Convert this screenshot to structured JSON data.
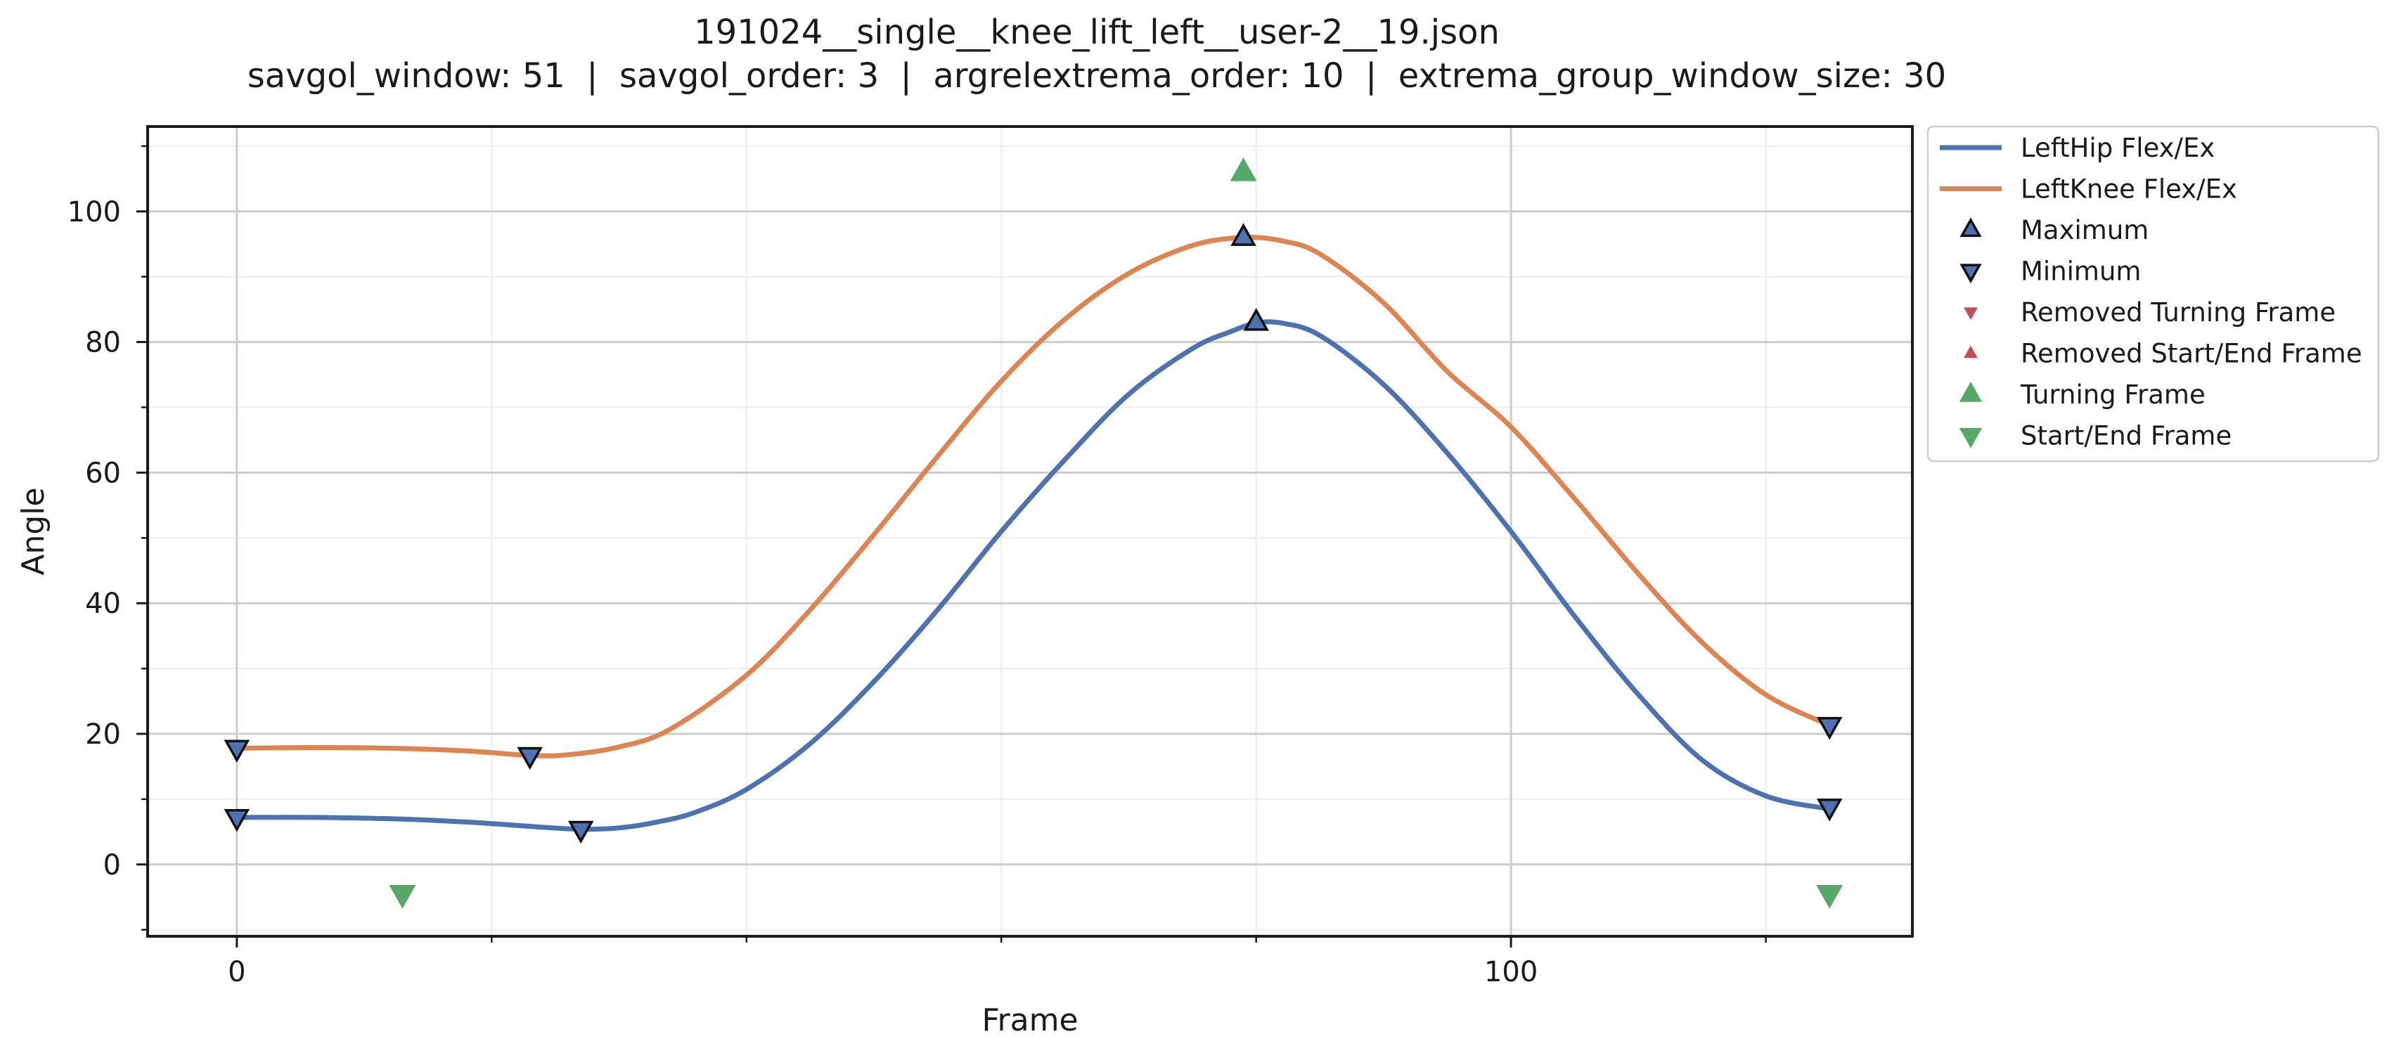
{
  "chart_data": {
    "type": "line",
    "title": "191024__single__knee_lift_left__user-2__19.json",
    "subtitle": "savgol_window: 51  |  savgol_order: 3  |  argrelextrema_order: 10  |  extrema_group_window_size: 30",
    "xlabel": "Frame",
    "ylabel": "Angle",
    "xlim": [
      -7,
      131.5
    ],
    "ylim": [
      -11,
      113
    ],
    "x_major_ticks": [
      0,
      100
    ],
    "x_minor_ticks": [
      20,
      40,
      60,
      80,
      120
    ],
    "y_major_ticks": [
      0,
      20,
      40,
      60,
      80,
      100
    ],
    "y_minor_ticks": [
      -10,
      10,
      30,
      50,
      70,
      90,
      110
    ],
    "grid": true,
    "legend_position": "outside-right-top",
    "series": [
      {
        "name": "LeftHip Flex/Ex",
        "color": "#4c72b0",
        "x": [
          0,
          6,
          12,
          18,
          24,
          27,
          30,
          33,
          36,
          40,
          45,
          50,
          55,
          60,
          65,
          70,
          75,
          78,
          80,
          82,
          85,
          90,
          95,
          100,
          105,
          110,
          115,
          120,
          125
        ],
        "y": [
          7.2,
          7.2,
          7,
          6.5,
          5.7,
          5.4,
          5.6,
          6.5,
          8,
          11.5,
          18.5,
          28,
          39,
          51,
          62,
          72,
          79,
          81.6,
          82.9,
          82.9,
          81,
          73.5,
          63,
          51,
          38,
          26,
          16,
          10.5,
          8.5
        ]
      },
      {
        "name": "LeftKnee Flex/Ex",
        "color": "#dd8452",
        "x": [
          0,
          6,
          12,
          18,
          23,
          26,
          30,
          34,
          40,
          45,
          50,
          55,
          60,
          65,
          70,
          75,
          79,
          82,
          85,
          90,
          95,
          100,
          105,
          110,
          115,
          120,
          125
        ],
        "y": [
          17.8,
          17.9,
          17.8,
          17.4,
          16.7,
          16.8,
          18,
          20.7,
          29,
          39,
          50.5,
          62.5,
          74,
          83.5,
          90.5,
          94.8,
          96,
          95.5,
          93.5,
          86,
          75.5,
          67,
          56,
          44.5,
          34,
          26,
          21.3
        ]
      }
    ],
    "markers": [
      {
        "name": "Maximum",
        "points": [
          [
            79,
            96
          ],
          [
            80,
            83
          ]
        ]
      },
      {
        "name": "Minimum",
        "points": [
          [
            0,
            17.8
          ],
          [
            0,
            7.2
          ],
          [
            23,
            16.7
          ],
          [
            27,
            5.4
          ],
          [
            125,
            21.3
          ],
          [
            125,
            8.8
          ]
        ]
      },
      {
        "name": "Removed Turning Frame",
        "points": []
      },
      {
        "name": "Removed Start/End Frame",
        "points": []
      },
      {
        "name": "Turning Frame",
        "points": [
          [
            79,
            106
          ]
        ]
      },
      {
        "name": "Start/End Frame",
        "points": [
          [
            13,
            -4.5
          ],
          [
            125,
            -4.5
          ]
        ]
      }
    ],
    "legend": [
      {
        "label": "LeftHip Flex/Ex",
        "kind": "line",
        "color": "#4c72b0"
      },
      {
        "label": "LeftKnee Flex/Ex",
        "kind": "line",
        "color": "#dd8452"
      },
      {
        "label": "Maximum",
        "kind": "tri-up-outlined",
        "color": "#4c72b0"
      },
      {
        "label": "Minimum",
        "kind": "tri-down-outlined",
        "color": "#4c72b0"
      },
      {
        "label": "Removed Turning Frame",
        "kind": "tri-down-small",
        "color": "#c44e52"
      },
      {
        "label": "Removed Start/End Frame",
        "kind": "tri-up-small",
        "color": "#c44e52"
      },
      {
        "label": "Turning Frame",
        "kind": "tri-up",
        "color": "#55a868"
      },
      {
        "label": "Start/End Frame",
        "kind": "tri-down",
        "color": "#55a868"
      }
    ]
  }
}
